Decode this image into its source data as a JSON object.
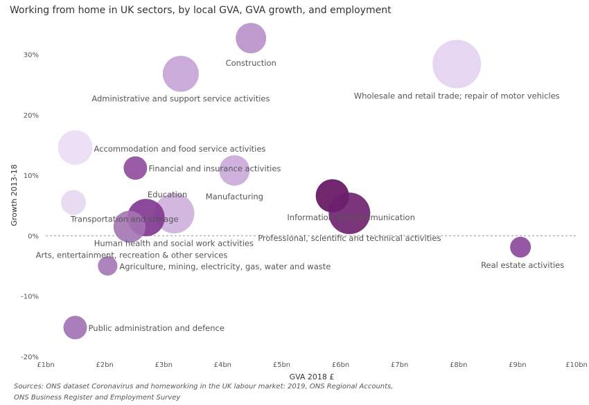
{
  "chart_data": {
    "type": "scatter",
    "title": "Working from home in UK sectors, by local GVA, GVA growth, and employment",
    "xlabel": "GVA 2018 £",
    "ylabel": "Growth 2013-18",
    "xlim": [
      1,
      10
    ],
    "ylim": [
      -20,
      35
    ],
    "x_ticks": [
      {
        "v": 1,
        "label": "£1bn"
      },
      {
        "v": 2,
        "label": "£2bn"
      },
      {
        "v": 3,
        "label": "£3bn"
      },
      {
        "v": 4,
        "label": "£4bn"
      },
      {
        "v": 5,
        "label": "£5bn"
      },
      {
        "v": 6,
        "label": "£6bn"
      },
      {
        "v": 7,
        "label": "£7bn"
      },
      {
        "v": 8,
        "label": "£8bn"
      },
      {
        "v": 9,
        "label": "£9bn"
      },
      {
        "v": 10,
        "label": "£10bn"
      }
    ],
    "y_ticks": [
      {
        "v": 30,
        "label": "30%"
      },
      {
        "v": 20,
        "label": "20%"
      },
      {
        "v": 10,
        "label": "10%"
      },
      {
        "v": 0,
        "label": "0%"
      },
      {
        "v": -10,
        "label": "-10%"
      },
      {
        "v": -20,
        "label": "-20%"
      }
    ],
    "grid": false,
    "zero_line": true,
    "points": [
      {
        "name": "Construction",
        "x": 4.48,
        "y": 32.7,
        "r": 22,
        "color": "#b88fc9"
      },
      {
        "name": "Wholesale and retail trade; repair of motor vehicles",
        "x": 7.97,
        "y": 28.4,
        "r": 35,
        "color": "#e4d2ef"
      },
      {
        "name": "Administrative and support service activities",
        "x": 3.29,
        "y": 26.8,
        "r": 26,
        "color": "#c4a2d5"
      },
      {
        "name": "Accommodation and food service activities",
        "x": 1.5,
        "y": 14.6,
        "r": 25,
        "color": "#ebdcf4"
      },
      {
        "name": "Financial and insurance activities",
        "x": 2.52,
        "y": 11.2,
        "r": 17,
        "color": "#8f4a9d"
      },
      {
        "name": "Manufacturing",
        "x": 4.2,
        "y": 10.8,
        "r": 22,
        "color": "#c9a8d9"
      },
      {
        "name": "Education",
        "x": 3.18,
        "y": 3.7,
        "r": 29,
        "color": "#cdb0dc"
      },
      {
        "name": "Transportation and storage",
        "x": 2.7,
        "y": 3.0,
        "r": 27,
        "color": "#7f3590"
      },
      {
        "name": "Human health and social work activities",
        "x": 2.42,
        "y": 1.5,
        "r": 23,
        "color": "#a474b4"
      },
      {
        "name": "Arts, entertainment, recreation & other services",
        "x": 1.47,
        "y": 5.5,
        "r": 18,
        "color": "#e6d7f1"
      },
      {
        "name": "Information and communication",
        "x": 5.86,
        "y": 6.6,
        "r": 24,
        "color": "#62105e"
      },
      {
        "name": "Professional, scientific and technical activities",
        "x": 6.15,
        "y": 3.7,
        "r": 30,
        "color": "#6c1f6d"
      },
      {
        "name": "Real estate activities",
        "x": 9.05,
        "y": -1.9,
        "r": 15,
        "color": "#8a479a"
      },
      {
        "name": "Agriculture, mining, electricity, gas, water and waste",
        "x": 2.05,
        "y": -5.0,
        "r": 14,
        "color": "#a375b3"
      },
      {
        "name": "Public administration and defence",
        "x": 1.5,
        "y": -15.2,
        "r": 17,
        "color": "#a070b2"
      }
    ]
  },
  "sources": [
    "Sources: ONS dataset Coronavirus and homeworking in the UK labour market: 2019, ONS Regional Accounts,",
    "ONS Business Register and Employment Survey"
  ]
}
